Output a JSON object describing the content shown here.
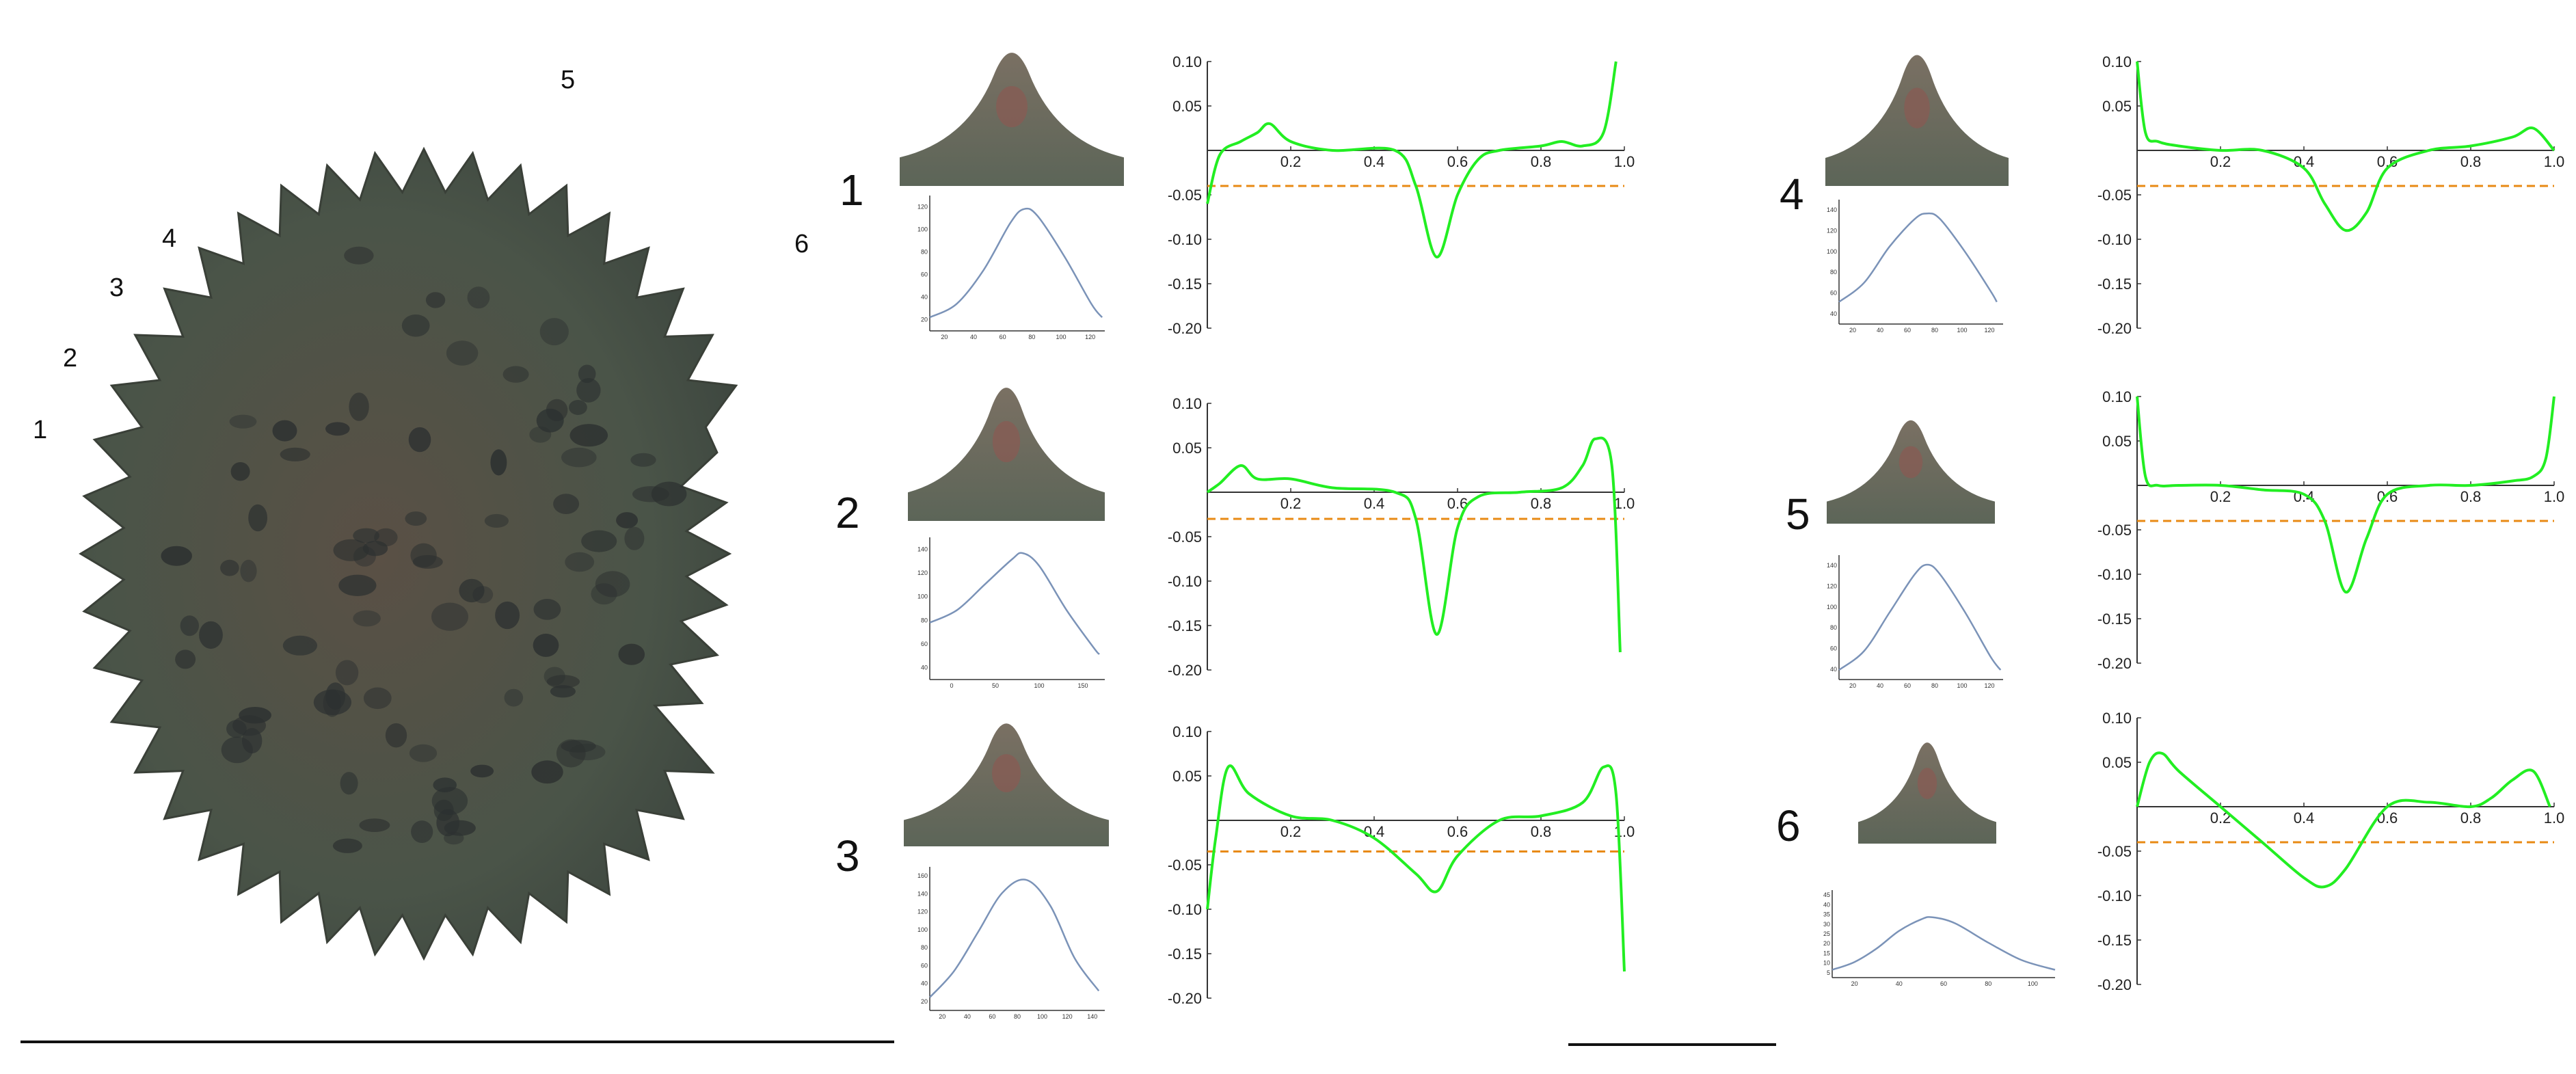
{
  "figure": {
    "spike_labels": [
      "1",
      "2",
      "3",
      "4",
      "5",
      "6"
    ],
    "colors": {
      "curvature": "#22ee22",
      "threshold": "#e88a14",
      "profile": "#7b93b8",
      "axis": "#333333",
      "seed_body": "#4a5448",
      "seed_spine": "#5a6257",
      "seed_tubercle": "#2c3030",
      "thumb_bg": "#5c6558",
      "thumb_tip": "#8a5a52"
    }
  },
  "chart_data": [
    {
      "panel": "1",
      "type": "line",
      "role": "profile",
      "x": [
        0,
        20,
        40,
        60,
        70,
        80,
        100,
        120,
        128
      ],
      "y": [
        2,
        4,
        9,
        16,
        18,
        17,
        11,
        4,
        2
      ],
      "xticks": [
        "20",
        "40",
        "60",
        "80",
        "100",
        "120"
      ],
      "yticks": [
        "20",
        "40",
        "60",
        "80",
        "100",
        "120"
      ],
      "xlim": [
        0,
        130
      ],
      "ylim": [
        0,
        20
      ]
    },
    {
      "panel": "1",
      "type": "line",
      "role": "curvature",
      "x": [
        0,
        0.03,
        0.08,
        0.12,
        0.15,
        0.2,
        0.3,
        0.45,
        0.5,
        0.55,
        0.6,
        0.65,
        0.7,
        0.8,
        0.85,
        0.9,
        0.95,
        0.98
      ],
      "y": [
        -0.06,
        -0.005,
        0.01,
        0.02,
        0.03,
        0.01,
        0.0,
        0.0,
        -0.04,
        -0.12,
        -0.05,
        -0.01,
        0.0,
        0.005,
        0.01,
        0.005,
        0.02,
        0.1
      ],
      "threshold": -0.04,
      "xticks": [
        "0.2",
        "0.4",
        "0.6",
        "0.8",
        "1.0"
      ],
      "yticks": [
        "0.10",
        "0.05",
        "-0.05",
        "-0.10",
        "-0.15",
        "-0.20"
      ],
      "xlim": [
        0,
        1.0
      ],
      "ylim": [
        -0.2,
        0.1
      ]
    },
    {
      "panel": "2",
      "type": "line",
      "role": "profile",
      "x": [
        0,
        25,
        50,
        75,
        85,
        100,
        125,
        150,
        155
      ],
      "y": [
        18,
        22,
        30,
        38,
        40,
        36,
        22,
        10,
        8
      ],
      "xticks": [
        "0",
        "50",
        "100",
        "150"
      ],
      "yticks": [
        "40",
        "60",
        "80",
        "100",
        "120",
        "140"
      ],
      "xlim": [
        0,
        160
      ],
      "ylim": [
        0,
        45
      ]
    },
    {
      "panel": "2",
      "type": "line",
      "role": "curvature",
      "x": [
        0,
        0.03,
        0.08,
        0.12,
        0.2,
        0.3,
        0.45,
        0.5,
        0.55,
        0.6,
        0.65,
        0.75,
        0.85,
        0.9,
        0.93,
        0.97,
        0.99
      ],
      "y": [
        0.0,
        0.01,
        0.03,
        0.015,
        0.015,
        0.005,
        0.0,
        -0.03,
        -0.16,
        -0.04,
        -0.005,
        0.0,
        0.005,
        0.03,
        0.06,
        0.03,
        -0.18
      ],
      "threshold": -0.03,
      "xticks": [
        "0.2",
        "0.4",
        "0.6",
        "0.8",
        "1.0"
      ],
      "yticks": [
        "0.10",
        "0.05",
        "-0.05",
        "-0.10",
        "-0.15",
        "-0.20"
      ],
      "xlim": [
        0,
        1.0
      ],
      "ylim": [
        -0.2,
        0.1
      ]
    },
    {
      "panel": "3",
      "type": "line",
      "role": "profile",
      "x": [
        0,
        20,
        40,
        60,
        80,
        100,
        120,
        140
      ],
      "y": [
        2,
        6,
        12,
        18,
        20,
        16,
        8,
        3
      ],
      "xticks": [
        "20",
        "40",
        "60",
        "80",
        "100",
        "120",
        "140"
      ],
      "yticks": [
        "20",
        "40",
        "60",
        "80",
        "100",
        "120",
        "140",
        "160"
      ],
      "xlim": [
        0,
        145
      ],
      "ylim": [
        0,
        22
      ]
    },
    {
      "panel": "3",
      "type": "line",
      "role": "curvature",
      "x": [
        0,
        0.02,
        0.05,
        0.1,
        0.2,
        0.3,
        0.4,
        0.5,
        0.55,
        0.6,
        0.7,
        0.8,
        0.9,
        0.95,
        0.98,
        1.0
      ],
      "y": [
        -0.1,
        -0.02,
        0.06,
        0.03,
        0.005,
        0.0,
        -0.02,
        -0.06,
        -0.08,
        -0.04,
        0.0,
        0.005,
        0.02,
        0.06,
        0.03,
        -0.17
      ],
      "threshold": -0.035,
      "xticks": [
        "0.2",
        "0.4",
        "0.6",
        "0.8",
        "1.0"
      ],
      "yticks": [
        "0.10",
        "0.05",
        "-0.05",
        "-0.10",
        "-0.15",
        "-0.20"
      ],
      "xlim": [
        0,
        1.0
      ],
      "ylim": [
        -0.2,
        0.1
      ]
    },
    {
      "panel": "4",
      "type": "line",
      "role": "profile",
      "x": [
        0,
        20,
        40,
        60,
        70,
        80,
        100,
        120,
        125
      ],
      "y": [
        8,
        15,
        28,
        38,
        40,
        38,
        26,
        12,
        8
      ],
      "xticks": [
        "20",
        "40",
        "60",
        "80",
        "100",
        "120"
      ],
      "yticks": [
        "40",
        "60",
        "80",
        "100",
        "120",
        "140"
      ],
      "xlim": [
        0,
        130
      ],
      "ylim": [
        0,
        45
      ]
    },
    {
      "panel": "4",
      "type": "line",
      "role": "curvature",
      "x": [
        0,
        0.02,
        0.05,
        0.1,
        0.2,
        0.3,
        0.4,
        0.45,
        0.5,
        0.55,
        0.6,
        0.7,
        0.8,
        0.9,
        0.95,
        1.0
      ],
      "y": [
        0.1,
        0.02,
        0.01,
        0.005,
        0.0,
        0.0,
        -0.02,
        -0.06,
        -0.09,
        -0.07,
        -0.02,
        0.0,
        0.005,
        0.015,
        0.025,
        0.0
      ],
      "threshold": -0.04,
      "xticks": [
        "0.2",
        "0.4",
        "0.6",
        "0.8",
        "1.0"
      ],
      "yticks": [
        "0.10",
        "0.05",
        "-0.05",
        "-0.10",
        "-0.15",
        "-0.20"
      ],
      "xlim": [
        0,
        1.0
      ],
      "ylim": [
        -0.2,
        0.1
      ]
    },
    {
      "panel": "5",
      "type": "line",
      "role": "profile",
      "x": [
        0,
        20,
        40,
        60,
        70,
        80,
        100,
        120,
        128
      ],
      "y": [
        5,
        15,
        35,
        55,
        60,
        55,
        35,
        12,
        5
      ],
      "xticks": [
        "20",
        "40",
        "60",
        "80",
        "100",
        "120"
      ],
      "yticks": [
        "40",
        "60",
        "80",
        "100",
        "120",
        "140"
      ],
      "xlim": [
        0,
        130
      ],
      "ylim": [
        0,
        65
      ]
    },
    {
      "panel": "5",
      "type": "line",
      "role": "curvature",
      "x": [
        0,
        0.02,
        0.05,
        0.1,
        0.2,
        0.3,
        0.4,
        0.45,
        0.5,
        0.55,
        0.6,
        0.7,
        0.8,
        0.9,
        0.95,
        0.98,
        1.0
      ],
      "y": [
        0.1,
        0.01,
        0.0,
        0.0,
        0.0,
        -0.005,
        -0.01,
        -0.04,
        -0.12,
        -0.06,
        -0.01,
        0.0,
        0.0,
        0.005,
        0.01,
        0.03,
        0.1
      ],
      "threshold": -0.04,
      "xticks": [
        "0.2",
        "0.4",
        "0.6",
        "0.8",
        "1.0"
      ],
      "yticks": [
        "0.10",
        "0.05",
        "-0.05",
        "-0.10",
        "-0.15",
        "-0.20"
      ],
      "xlim": [
        0,
        1.0
      ],
      "ylim": [
        -0.2,
        0.1
      ]
    },
    {
      "panel": "6",
      "type": "line",
      "role": "profile",
      "x": [
        0,
        10,
        20,
        30,
        40,
        45,
        55,
        70,
        85,
        100
      ],
      "y": [
        4,
        8,
        15,
        24,
        30,
        31,
        28,
        18,
        9,
        4
      ],
      "xticks": [
        "20",
        "40",
        "60",
        "80",
        "100"
      ],
      "yticks": [
        "5",
        "10",
        "15",
        "20",
        "25",
        "30",
        "35",
        "40",
        "45"
      ],
      "xlim": [
        0,
        100
      ],
      "ylim": [
        0,
        45
      ]
    },
    {
      "panel": "6",
      "type": "line",
      "role": "curvature",
      "x": [
        0,
        0.03,
        0.06,
        0.1,
        0.2,
        0.3,
        0.4,
        0.45,
        0.5,
        0.6,
        0.7,
        0.8,
        0.85,
        0.9,
        0.95,
        0.99
      ],
      "y": [
        0.0,
        0.05,
        0.06,
        0.04,
        0.0,
        -0.04,
        -0.08,
        -0.09,
        -0.07,
        0.0,
        0.005,
        0.0,
        0.01,
        0.03,
        0.04,
        0.0
      ],
      "threshold": -0.04,
      "xticks": [
        "0.2",
        "0.4",
        "0.6",
        "0.8",
        "1.0"
      ],
      "yticks": [
        "0.10",
        "0.05",
        "-0.05",
        "-0.10",
        "-0.15",
        "-0.20"
      ],
      "xlim": [
        0,
        1.0
      ],
      "ylim": [
        -0.2,
        0.1
      ]
    }
  ]
}
